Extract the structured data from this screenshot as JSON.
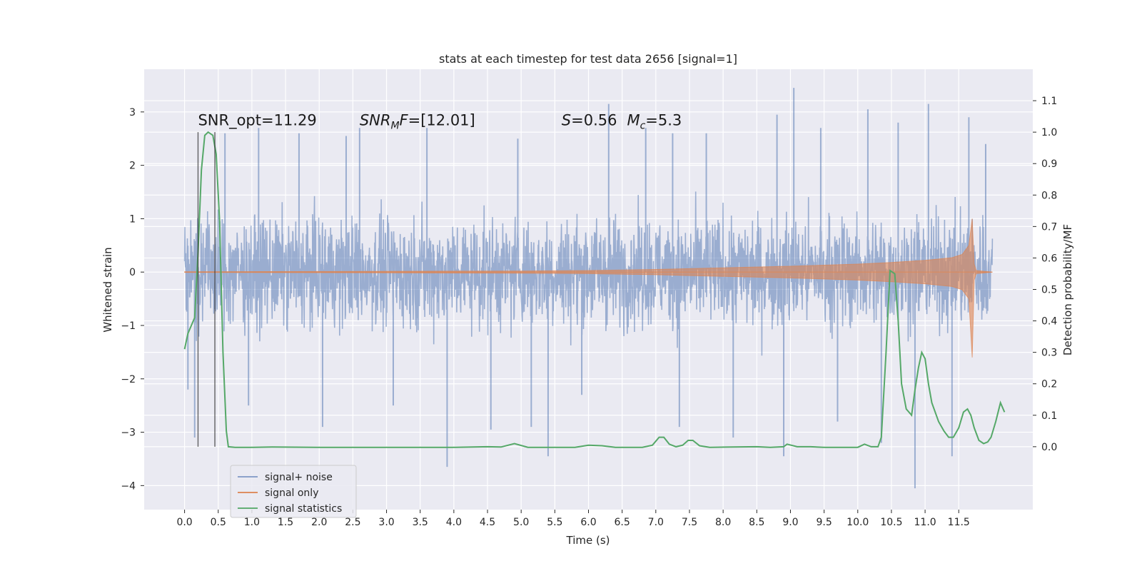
{
  "chart_data": {
    "type": "line",
    "title": "stats at each timestep for test data 2656 [signal=1]",
    "xlabel": "Time (s)",
    "ylabel": "Whitened strain",
    "ylabel_right": "Detection probability/MF",
    "xlim": [
      -0.6,
      12.6
    ],
    "ylim": [
      -4.45,
      3.8
    ],
    "ylim_right": [
      -0.2,
      1.2
    ],
    "x_ticks": [
      "0.0",
      "0.5",
      "1.0",
      "1.5",
      "2.0",
      "2.5",
      "3.0",
      "3.5",
      "4.0",
      "4.5",
      "5.0",
      "5.5",
      "6.0",
      "6.5",
      "7.0",
      "7.5",
      "8.0",
      "8.5",
      "9.0",
      "9.5",
      "10.0",
      "10.5",
      "11.0",
      "11.5"
    ],
    "y_ticks": [
      "3",
      "2",
      "1",
      "0",
      "−1",
      "−2",
      "−3",
      "−4"
    ],
    "y_ticks_right": [
      "1.1",
      "1.0",
      "0.9",
      "0.8",
      "0.7",
      "0.6",
      "0.5",
      "0.4",
      "0.3",
      "0.2",
      "0.1",
      "0.0"
    ],
    "grid": true,
    "legend_position": "lower-left",
    "annotations": [
      {
        "text": "SNR_opt=11.29",
        "x": 0.2,
        "y": 2.75
      },
      {
        "text": "SNR_MF=[12.01]",
        "x": 2.6,
        "y": 2.75
      },
      {
        "text": "S=0.56   M_c=5.3",
        "x": 5.6,
        "y": 2.75
      }
    ],
    "vertical_markers": [
      0.2,
      0.45
    ],
    "series": [
      {
        "name": "signal+ noise",
        "color": "#4c72b0",
        "x_range": [
          0.0,
          12.0
        ],
        "envelope_typical": 1.35,
        "spikes": [
          {
            "x": 0.05,
            "y": -2.2
          },
          {
            "x": 0.15,
            "y": -3.1
          },
          {
            "x": 0.6,
            "y": 2.6
          },
          {
            "x": 0.95,
            "y": -2.5
          },
          {
            "x": 1.1,
            "y": 2.7
          },
          {
            "x": 1.7,
            "y": 2.6
          },
          {
            "x": 2.05,
            "y": -2.9
          },
          {
            "x": 2.4,
            "y": 2.55
          },
          {
            "x": 2.6,
            "y": 2.7
          },
          {
            "x": 3.1,
            "y": -2.5
          },
          {
            "x": 3.6,
            "y": 2.7
          },
          {
            "x": 3.9,
            "y": -3.65
          },
          {
            "x": 4.55,
            "y": -2.95
          },
          {
            "x": 4.95,
            "y": 2.5
          },
          {
            "x": 5.15,
            "y": -2.9
          },
          {
            "x": 5.4,
            "y": -3.45
          },
          {
            "x": 5.9,
            "y": -2.3
          },
          {
            "x": 6.3,
            "y": 3.15
          },
          {
            "x": 6.85,
            "y": 2.7
          },
          {
            "x": 7.25,
            "y": 2.6
          },
          {
            "x": 7.35,
            "y": -2.9
          },
          {
            "x": 7.75,
            "y": 2.6
          },
          {
            "x": 8.15,
            "y": -3.1
          },
          {
            "x": 8.8,
            "y": 2.95
          },
          {
            "x": 8.9,
            "y": -3.45
          },
          {
            "x": 9.05,
            "y": 3.45
          },
          {
            "x": 9.45,
            "y": 2.7
          },
          {
            "x": 9.7,
            "y": -2.8
          },
          {
            "x": 10.15,
            "y": 3.05
          },
          {
            "x": 10.35,
            "y": -3.2
          },
          {
            "x": 10.6,
            "y": 2.8
          },
          {
            "x": 10.85,
            "y": -4.05
          },
          {
            "x": 11.05,
            "y": 3.15
          },
          {
            "x": 11.4,
            "y": -3.45
          },
          {
            "x": 11.65,
            "y": 2.9
          },
          {
            "x": 11.9,
            "y": 2.4
          }
        ]
      },
      {
        "name": "signal only",
        "color": "#dd8452",
        "x_range": [
          0.0,
          12.0
        ],
        "amplitude_points": [
          {
            "x": 0.0,
            "y": 0.005
          },
          {
            "x": 5.0,
            "y": 0.02
          },
          {
            "x": 6.0,
            "y": 0.03
          },
          {
            "x": 7.0,
            "y": 0.05
          },
          {
            "x": 8.0,
            "y": 0.08
          },
          {
            "x": 9.0,
            "y": 0.11
          },
          {
            "x": 10.0,
            "y": 0.15
          },
          {
            "x": 10.5,
            "y": 0.18
          },
          {
            "x": 11.0,
            "y": 0.22
          },
          {
            "x": 11.4,
            "y": 0.27
          },
          {
            "x": 11.55,
            "y": 0.33
          },
          {
            "x": 11.65,
            "y": 0.5
          },
          {
            "x": 11.7,
            "y": 1.0
          },
          {
            "x": 11.73,
            "y": 0.15
          },
          {
            "x": 11.76,
            "y": 0.03
          },
          {
            "x": 12.0,
            "y": 0.0
          }
        ]
      },
      {
        "name": "signal statistics",
        "color": "#55a868",
        "axis": "right",
        "points": [
          [
            0.0,
            0.31
          ],
          [
            0.05,
            0.36
          ],
          [
            0.15,
            0.41
          ],
          [
            0.2,
            0.62
          ],
          [
            0.25,
            0.88
          ],
          [
            0.3,
            0.99
          ],
          [
            0.35,
            1.0
          ],
          [
            0.42,
            0.99
          ],
          [
            0.47,
            0.93
          ],
          [
            0.52,
            0.72
          ],
          [
            0.57,
            0.3
          ],
          [
            0.62,
            0.05
          ],
          [
            0.65,
            0.0
          ],
          [
            0.75,
            -0.002
          ],
          [
            1.0,
            -0.002
          ],
          [
            1.3,
            -0.001
          ],
          [
            2.0,
            -0.002
          ],
          [
            3.0,
            -0.002
          ],
          [
            4.0,
            -0.002
          ],
          [
            4.5,
            0.0
          ],
          [
            4.7,
            -0.001
          ],
          [
            4.9,
            0.01
          ],
          [
            5.1,
            -0.002
          ],
          [
            5.5,
            -0.002
          ],
          [
            5.8,
            -0.002
          ],
          [
            6.0,
            0.005
          ],
          [
            6.2,
            0.003
          ],
          [
            6.4,
            -0.002
          ],
          [
            6.8,
            -0.002
          ],
          [
            6.95,
            0.005
          ],
          [
            7.05,
            0.03
          ],
          [
            7.12,
            0.03
          ],
          [
            7.2,
            0.008
          ],
          [
            7.3,
            0.0
          ],
          [
            7.4,
            0.005
          ],
          [
            7.48,
            0.02
          ],
          [
            7.55,
            0.02
          ],
          [
            7.65,
            0.003
          ],
          [
            7.8,
            -0.002
          ],
          [
            8.5,
            0.0
          ],
          [
            8.7,
            -0.002
          ],
          [
            8.9,
            0.0
          ],
          [
            8.95,
            0.008
          ],
          [
            9.1,
            0.0
          ],
          [
            9.3,
            0.0
          ],
          [
            9.5,
            -0.002
          ],
          [
            10.0,
            -0.002
          ],
          [
            10.1,
            0.008
          ],
          [
            10.2,
            0.0
          ],
          [
            10.3,
            0.0
          ],
          [
            10.35,
            0.03
          ],
          [
            10.42,
            0.3
          ],
          [
            10.48,
            0.56
          ],
          [
            10.55,
            0.55
          ],
          [
            10.6,
            0.4
          ],
          [
            10.65,
            0.2
          ],
          [
            10.72,
            0.12
          ],
          [
            10.8,
            0.1
          ],
          [
            10.85,
            0.18
          ],
          [
            10.9,
            0.25
          ],
          [
            10.95,
            0.3
          ],
          [
            11.0,
            0.28
          ],
          [
            11.05,
            0.2
          ],
          [
            11.1,
            0.14
          ],
          [
            11.2,
            0.08
          ],
          [
            11.28,
            0.05
          ],
          [
            11.35,
            0.03
          ],
          [
            11.42,
            0.03
          ],
          [
            11.5,
            0.06
          ],
          [
            11.57,
            0.11
          ],
          [
            11.63,
            0.12
          ],
          [
            11.68,
            0.1
          ],
          [
            11.73,
            0.06
          ],
          [
            11.8,
            0.02
          ],
          [
            11.87,
            0.01
          ],
          [
            11.93,
            0.015
          ],
          [
            11.98,
            0.03
          ],
          [
            12.05,
            0.08
          ],
          [
            12.12,
            0.14
          ],
          [
            12.18,
            0.11
          ]
        ]
      }
    ]
  }
}
